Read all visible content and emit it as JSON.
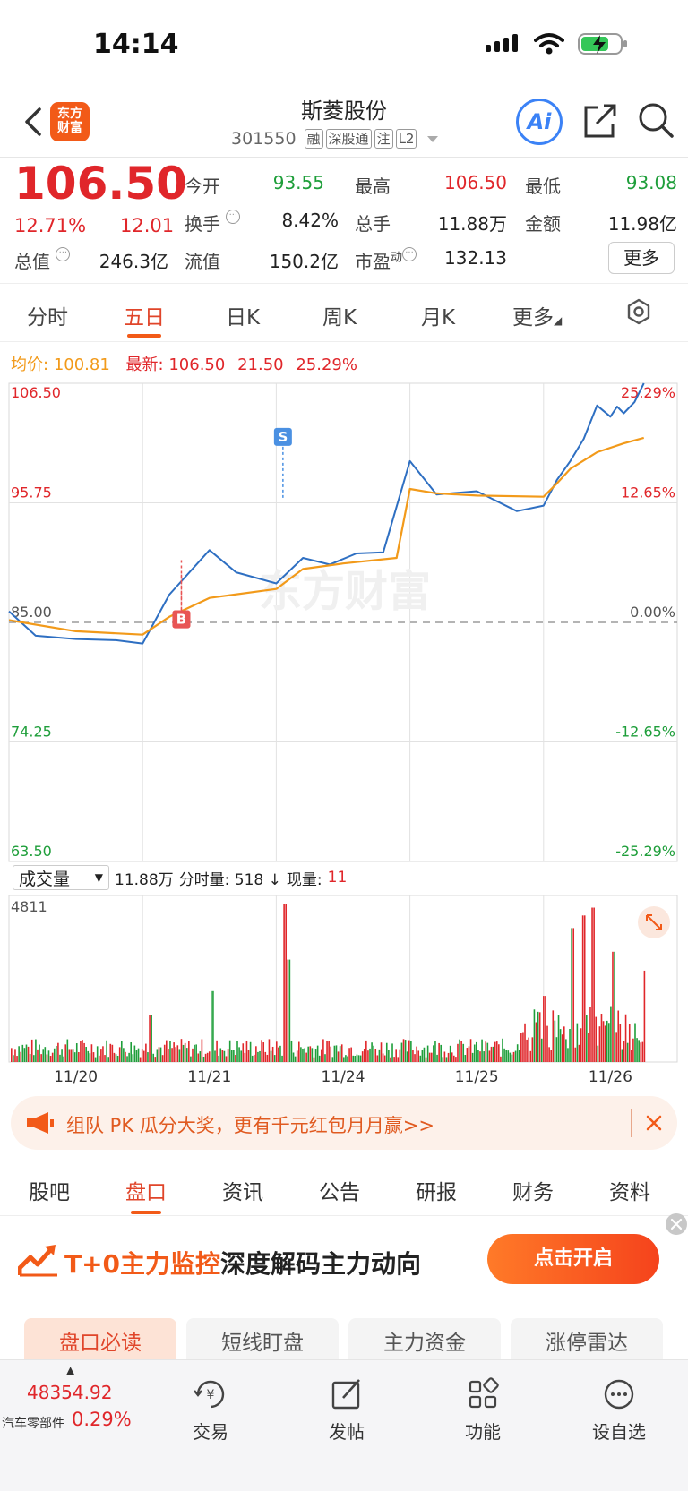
{
  "status_bar": {
    "time": "14:14"
  },
  "header": {
    "stock_name": "斯菱股份",
    "stock_code": "301550",
    "tags": [
      "融",
      "深股通",
      "注",
      "L2"
    ],
    "logo_line1": "东方",
    "logo_line2": "财富",
    "ai_label": "Ai"
  },
  "quote": {
    "price": "106.50",
    "change_pct": "12.71%",
    "change_amt": "12.01",
    "fields": {
      "open_label": "今开",
      "open": "93.55",
      "high_label": "最高",
      "high": "106.50",
      "low_label": "最低",
      "low": "93.08",
      "turnover_label": "换手",
      "turnover": "8.42%",
      "volume_label": "总手",
      "volume": "11.88万",
      "amount_label": "金额",
      "amount": "11.98亿",
      "mktcap_label": "总值",
      "mktcap": "246.3亿",
      "float_label": "流值",
      "float": "150.2亿",
      "pe_label": "市盈",
      "pe_sup": "动",
      "pe": "132.13"
    },
    "more_label": "更多"
  },
  "period_tabs": [
    "分时",
    "五日",
    "日K",
    "周K",
    "月K",
    "更多"
  ],
  "avg_row": {
    "avg_label": "均价:",
    "avg_value": "100.81",
    "latest_label": "最新:",
    "latest_value": "106.50",
    "latest_chg": "21.50",
    "latest_pct": "25.29%"
  },
  "chart_data": {
    "type": "line",
    "days": [
      "11/20",
      "11/21",
      "11/24",
      "11/25",
      "11/26"
    ],
    "y_left_ticks": [
      "106.50",
      "95.75",
      "85.00",
      "74.25",
      "63.50"
    ],
    "y_right_ticks": [
      "25.29%",
      "12.65%",
      "0.00%",
      "-12.65%",
      "-25.29%"
    ],
    "ylim": [
      63.5,
      106.5
    ],
    "watermark": "东方财富",
    "series": [
      {
        "name": "最新",
        "color": "#2e6fc2",
        "x": [
          0,
          0.2,
          0.5,
          0.8,
          1.0,
          1.2,
          1.5,
          1.7,
          2.0,
          2.2,
          2.4,
          2.6,
          2.8,
          3.0,
          3.2,
          3.5,
          3.8,
          4.0,
          4.1,
          4.2,
          4.3,
          4.4,
          4.5,
          4.55,
          4.6,
          4.68,
          4.75
        ],
        "y": [
          86,
          83.8,
          83.5,
          83.4,
          83.1,
          87.5,
          91.5,
          89.5,
          88.5,
          90.8,
          90.2,
          91.2,
          91.3,
          99.5,
          96.5,
          96.8,
          95,
          95.5,
          97.8,
          99.5,
          101.5,
          104.5,
          103.5,
          104.4,
          103.8,
          104.8,
          106.5
        ]
      },
      {
        "name": "均价",
        "color": "#f29a1a",
        "x": [
          0,
          0.5,
          1.0,
          1.2,
          1.5,
          2.0,
          2.2,
          2.5,
          2.9,
          3.0,
          3.2,
          3.5,
          4.0,
          4.1,
          4.2,
          4.4,
          4.6,
          4.75
        ],
        "y": [
          85.2,
          84.2,
          83.9,
          85.5,
          87.2,
          88,
          89.8,
          90.3,
          90.8,
          97,
          96.6,
          96.4,
          96.3,
          97.5,
          98.8,
          100.3,
          101.1,
          101.6
        ]
      }
    ],
    "markers": [
      {
        "label": "S",
        "day": 2.05,
        "price": 96.2,
        "color": "#4a90e2"
      },
      {
        "label": "B",
        "day": 1.29,
        "price": 89.3,
        "color": "#e85555"
      },
      {
        "label": "B",
        "day": 1.29,
        "price": 90.6,
        "color": "#e85555"
      }
    ]
  },
  "volume_bar": {
    "select_label": "成交量",
    "total": "11.88万",
    "period_label": "分时量: 518 ↓",
    "now_label": "现量:",
    "now_value": "11",
    "max_tick": "4811"
  },
  "volume_data": {
    "type": "bar",
    "ylim": [
      0,
      4811
    ],
    "note_days": [
      "11/20",
      "11/21",
      "11/24",
      "11/25",
      "11/26"
    ]
  },
  "promo": {
    "text": "组队 PK 瓜分大奖，更有千元红包月月赢>>"
  },
  "info_tabs": [
    "股吧",
    "盘口",
    "资讯",
    "公告",
    "研报",
    "财务",
    "资料"
  ],
  "banner": {
    "title_red": "T+0主力监控",
    "title_dark": "深度解码主力动向",
    "button": "点击开启"
  },
  "sub_tabs": [
    "盘口必读",
    "短线盯盘",
    "主力资金",
    "涨停雷达"
  ],
  "bottom_nav": {
    "index_value": "48354.92",
    "index_name": "汽车零部件",
    "index_pct": "0.29%",
    "items": [
      "交易",
      "发帖",
      "功能",
      "设自选"
    ]
  },
  "colors": {
    "up": "#e0262a",
    "down": "#1e9e3a",
    "accent": "#f25a18",
    "price_line": "#2e6fc2",
    "avg_line": "#f29a1a"
  }
}
